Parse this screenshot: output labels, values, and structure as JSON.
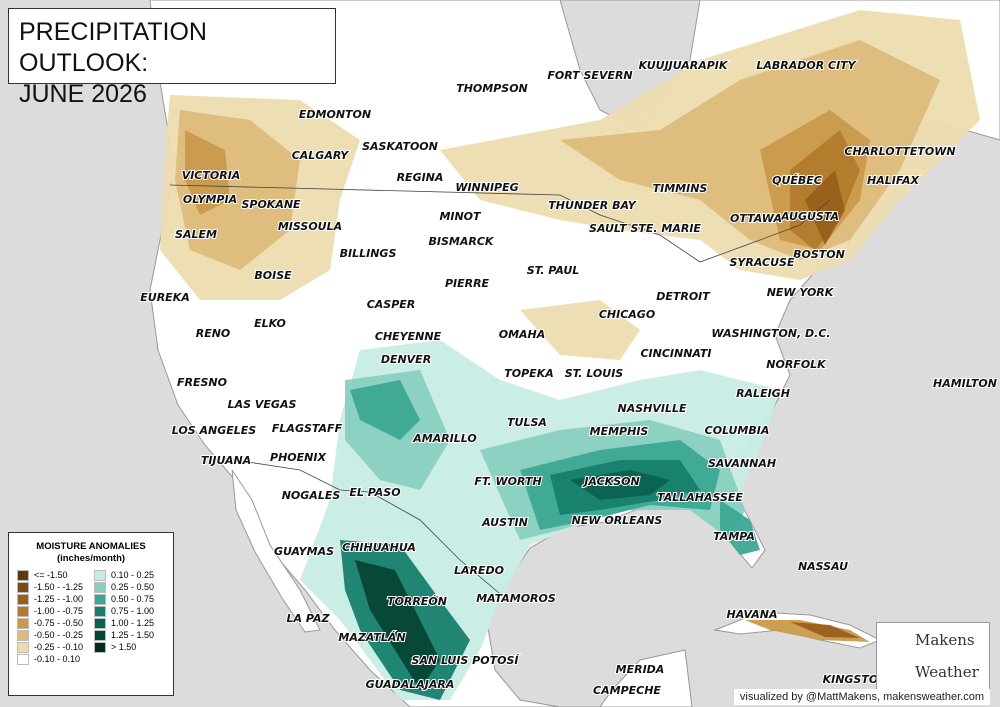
{
  "title": {
    "lines": [
      "PRECIPITATION OUTLOOK:",
      "JUNE 2026"
    ]
  },
  "cities": [
    "FORT SEVERN",
    "KUUJJUARAPIK",
    "LABRADOR CITY",
    "THOMPSON",
    "EDMONTON",
    "CALGARY",
    "SASKATOON",
    "CHARLOTTETOWN",
    "REGINA",
    "WINNIPEG",
    "TIMMINS",
    "QUÉBEC",
    "HALIFAX",
    "VICTORIA",
    "OLYMPIA",
    "SPOKANE",
    "THUNDER BAY",
    "MINOT",
    "AUGUSTA",
    "OTTAWA",
    "SAULT STE. MARIE",
    "MISSOULA",
    "BISMARCK",
    "SALEM",
    "BILLINGS",
    "BOSTON",
    "ST. PAUL",
    "SYRACUSE",
    "BOISE",
    "PIERRE",
    "EUREKA",
    "DETROIT",
    "NEW YORK",
    "CASPER",
    "CHICAGO",
    "ELKO",
    "RENO",
    "CHEYENNE",
    "OMAHA",
    "WASHINGTON, D.C.",
    "CINCINNATI",
    "DENVER",
    "NORFOLK",
    "TOPEKA",
    "ST. LOUIS",
    "FRESNO",
    "HAMILTON",
    "RALEIGH",
    "LAS VEGAS",
    "NASHVILLE",
    "TULSA",
    "LOS ANGELES",
    "FLAGSTAFF",
    "AMARILLO",
    "MEMPHIS",
    "COLUMBIA",
    "PHOENIX",
    "TIJUANA",
    "SAVANNAH",
    "FT. WORTH",
    "JACKSON",
    "NOGALES",
    "EL PASO",
    "TALLAHASSEE",
    "AUSTIN",
    "NEW ORLEANS",
    "TAMPA",
    "GUAYMAS",
    "CHIHUAHUA",
    "NASSAU",
    "LAREDO",
    "MATAMOROS",
    "TORREÓN",
    "LA PAZ",
    "HAVANA",
    "MAZATLÁN",
    "SAN LUIS POTOSÍ",
    "MERIDA",
    "GUADALAJARA",
    "KINGSTON",
    "CAMPECHE"
  ],
  "legend": {
    "title_lines": [
      "MOISTURE ANOMALIES",
      "(inches/month)"
    ],
    "items": [
      {
        "label": "<= -1.50",
        "color": "#5c3a0c"
      },
      {
        "label": "-1.50 - -1.25",
        "color": "#7a4a12"
      },
      {
        "label": "-1.25 - -1.00",
        "color": "#99601c"
      },
      {
        "label": "-1.00 - -0.75",
        "color": "#b27b2c"
      },
      {
        "label": "-0.75 - -0.50",
        "color": "#c99a4c"
      },
      {
        "label": "-0.50 - -0.25",
        "color": "#dcbb7c"
      },
      {
        "label": "-0.25 - -0.10",
        "color": "#eddcb0"
      },
      {
        "label": "-0.10 - 0.10",
        "color": "#ffffff"
      },
      {
        "label": "0.10 - 0.25",
        "color": "#c7ece4"
      },
      {
        "label": "0.25 - 0.50",
        "color": "#88d0c0"
      },
      {
        "label": "0.50 - 0.75",
        "color": "#3ca893"
      },
      {
        "label": "0.75 - 1.00",
        "color": "#16806c"
      },
      {
        "label": "1.00 - 1.25",
        "color": "#0b6150"
      },
      {
        "label": "1.25 - 1.50",
        "color": "#074536"
      },
      {
        "label": "> 1.50",
        "color": "#032a20"
      }
    ]
  },
  "logo": {
    "top": "Makens",
    "bottom": "Weather"
  },
  "credit": "visualized by @MattMakens, makensweather.com"
}
